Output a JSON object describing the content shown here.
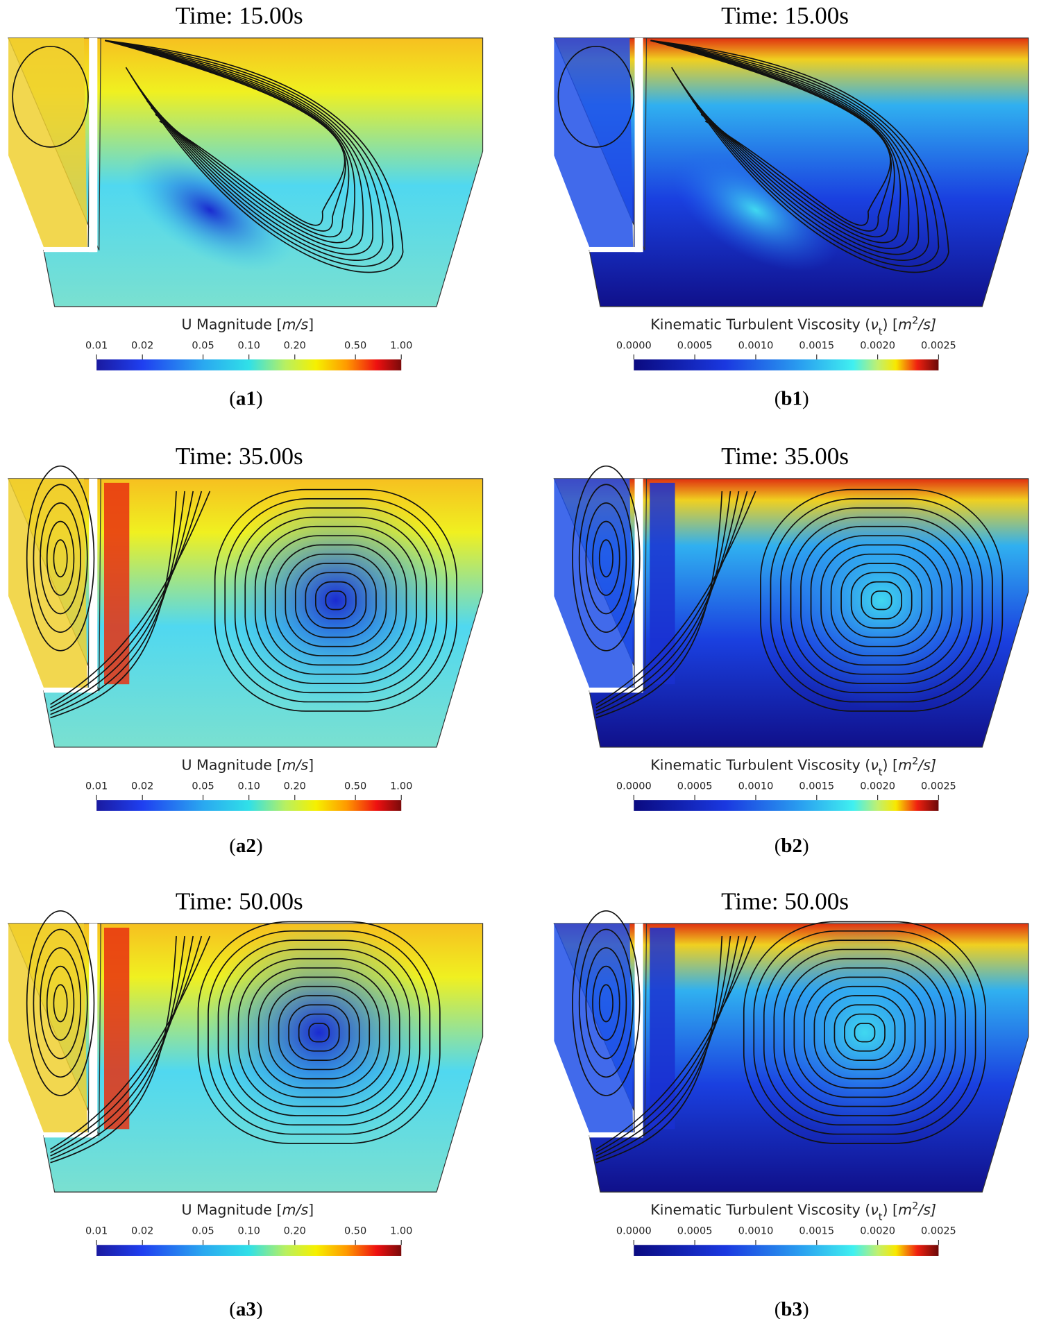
{
  "panels": [
    {
      "title": "Time: 15.00s",
      "colorbar": {
        "label": [
          "U Magnitude [",
          "m/s",
          "]"
        ],
        "scale": "log",
        "range": [
          0.01,
          1
        ],
        "ticks": [
          {
            "value": 0.01,
            "label": "0.01"
          },
          {
            "value": 0.02,
            "label": "0.02"
          },
          {
            "value": 0.05,
            "label": "0.05"
          },
          {
            "value": 0.1,
            "label": "0.10"
          },
          {
            "value": 0.2,
            "label": "0.20"
          },
          {
            "value": 0.5,
            "label": "0.50"
          },
          {
            "value": 1,
            "label": "1.00"
          }
        ]
      },
      "caption": [
        "(",
        "a1",
        ")"
      ]
    },
    {
      "title": "Time: 15.00s",
      "colorbar": {
        "label": [
          "Kinematic Turbulent Viscosity (",
          "ν",
          "t",
          ") [",
          "m",
          "2",
          "/s]"
        ],
        "scale": "linear",
        "range": [
          0,
          0.0025
        ],
        "ticks": [
          {
            "value": 0,
            "label": "0.0000"
          },
          {
            "value": 0.0005,
            "label": "0.0005"
          },
          {
            "value": 0.001,
            "label": "0.0010"
          },
          {
            "value": 0.0015,
            "label": "0.0015"
          },
          {
            "value": 0.002,
            "label": "0.0020"
          },
          {
            "value": 0.0025,
            "label": "0.0025"
          }
        ]
      },
      "caption": [
        "(",
        "b1",
        ")"
      ]
    },
    {
      "title": "Time: 35.00s",
      "colorbar": {
        "label": [
          "U Magnitude [",
          "m/s",
          "]"
        ],
        "scale": "log",
        "range": [
          0.01,
          1
        ],
        "ticks": [
          {
            "value": 0.01,
            "label": "0.01"
          },
          {
            "value": 0.02,
            "label": "0.02"
          },
          {
            "value": 0.05,
            "label": "0.05"
          },
          {
            "value": 0.1,
            "label": "0.10"
          },
          {
            "value": 0.2,
            "label": "0.20"
          },
          {
            "value": 0.5,
            "label": "0.50"
          },
          {
            "value": 1,
            "label": "1.00"
          }
        ]
      },
      "caption": [
        "(",
        "a2",
        ")"
      ]
    },
    {
      "title": "Time: 35.00s",
      "colorbar": {
        "label": [
          "Kinematic Turbulent Viscosity (",
          "ν",
          "t",
          ") [",
          "m",
          "2",
          "/s]"
        ],
        "scale": "linear",
        "range": [
          0,
          0.0025
        ],
        "ticks": [
          {
            "value": 0,
            "label": "0.0000"
          },
          {
            "value": 0.0005,
            "label": "0.0005"
          },
          {
            "value": 0.001,
            "label": "0.0010"
          },
          {
            "value": 0.0015,
            "label": "0.0015"
          },
          {
            "value": 0.002,
            "label": "0.0020"
          },
          {
            "value": 0.0025,
            "label": "0.0025"
          }
        ]
      },
      "caption": [
        "(",
        "b2",
        ")"
      ]
    },
    {
      "title": "Time: 50.00s",
      "colorbar": {
        "label": [
          "U Magnitude [",
          "m/s",
          "]"
        ],
        "scale": "log",
        "range": [
          0.01,
          1
        ],
        "ticks": [
          {
            "value": 0.01,
            "label": "0.01"
          },
          {
            "value": 0.02,
            "label": "0.02"
          },
          {
            "value": 0.05,
            "label": "0.05"
          },
          {
            "value": 0.1,
            "label": "0.10"
          },
          {
            "value": 0.2,
            "label": "0.20"
          },
          {
            "value": 0.5,
            "label": "0.50"
          },
          {
            "value": 1,
            "label": "1.00"
          }
        ]
      },
      "caption": [
        "(",
        "a3",
        ")"
      ]
    },
    {
      "title": "Time: 50.00s",
      "colorbar": {
        "label": [
          "Kinematic Turbulent Viscosity (",
          "ν",
          "t",
          ") [",
          "m",
          "2",
          "/s]"
        ],
        "scale": "linear",
        "range": [
          0,
          0.0025
        ],
        "ticks": [
          {
            "value": 0,
            "label": "0.0000"
          },
          {
            "value": 0.0005,
            "label": "0.0005"
          },
          {
            "value": 0.001,
            "label": "0.0010"
          },
          {
            "value": 0.0015,
            "label": "0.0015"
          },
          {
            "value": 0.002,
            "label": "0.0020"
          },
          {
            "value": 0.0025,
            "label": "0.0025"
          }
        ]
      },
      "caption": [
        "(",
        "b3",
        ")"
      ]
    }
  ]
}
